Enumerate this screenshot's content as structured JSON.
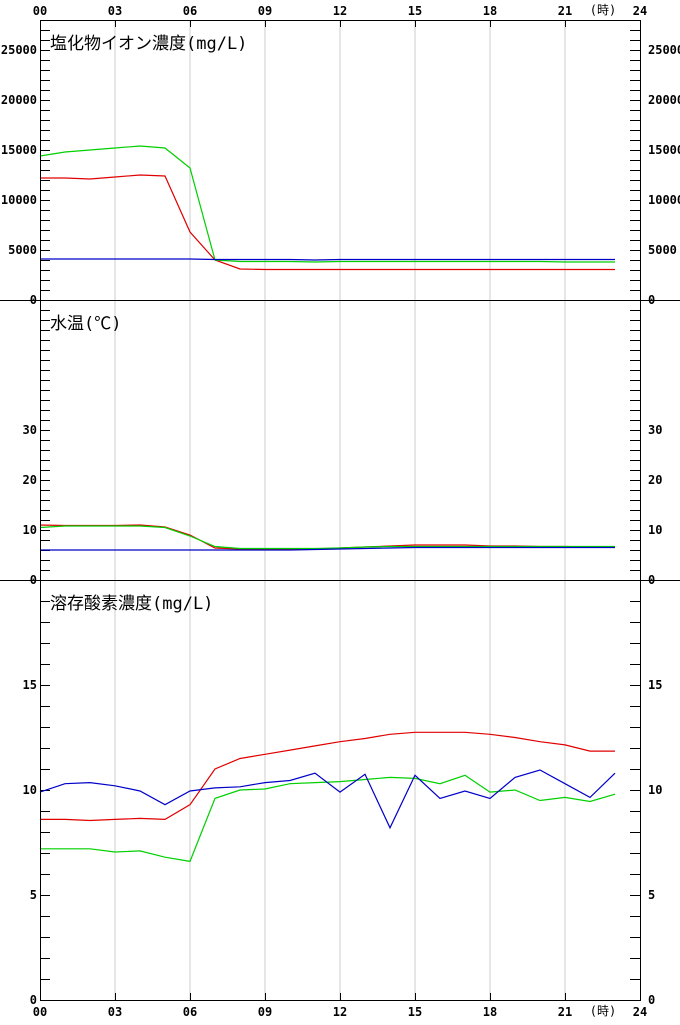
{
  "x_axis": {
    "tick_labels": [
      "00",
      "03",
      "06",
      "09",
      "12",
      "15",
      "18",
      "21",
      "24"
    ],
    "unit_label": "(時)",
    "range": [
      0,
      24
    ]
  },
  "colors": {
    "series_red": "#e00000",
    "series_green": "#00d000",
    "series_blue": "#0000c8",
    "gridline": "#cccccc",
    "frame": "#000000"
  },
  "chart_data": [
    {
      "type": "line",
      "title": "塩化物イオン濃度(mg/L)",
      "xlabel": "",
      "ylabel": "",
      "xlim": [
        0,
        24
      ],
      "ylim": [
        0,
        28000
      ],
      "yticks": [
        0,
        5000,
        10000,
        15000,
        20000,
        25000
      ],
      "ytick_labels": [
        "0",
        "5000",
        "10000",
        "15000",
        "20000",
        "25000"
      ],
      "minor_step": 1000,
      "grid": "vertical",
      "x": [
        0,
        1,
        2,
        3,
        4,
        5,
        6,
        7,
        8,
        9,
        10,
        11,
        12,
        13,
        14,
        15,
        16,
        17,
        18,
        19,
        20,
        21,
        22,
        23
      ],
      "series": [
        {
          "color": "red",
          "values": [
            12200,
            12200,
            12100,
            12300,
            12500,
            12400,
            6800,
            4000,
            3100,
            3050,
            3050,
            3050,
            3050,
            3050,
            3050,
            3050,
            3050,
            3050,
            3050,
            3050,
            3050,
            3050,
            3050,
            3050
          ]
        },
        {
          "color": "green",
          "values": [
            14400,
            14800,
            15000,
            15200,
            15400,
            15200,
            13200,
            4000,
            3850,
            3850,
            3850,
            3800,
            3850,
            3850,
            3850,
            3850,
            3850,
            3850,
            3850,
            3850,
            3850,
            3800,
            3800,
            3800
          ]
        },
        {
          "color": "blue",
          "values": [
            4100,
            4100,
            4100,
            4100,
            4100,
            4100,
            4100,
            4050,
            4050,
            4050,
            4050,
            4000,
            4050,
            4050,
            4050,
            4050,
            4050,
            4050,
            4050,
            4050,
            4050,
            4050,
            4050,
            4050
          ]
        }
      ]
    },
    {
      "type": "line",
      "title": "水温(℃)",
      "xlabel": "",
      "ylabel": "",
      "xlim": [
        0,
        24
      ],
      "ylim": [
        0,
        56
      ],
      "yticks": [
        0,
        10,
        20,
        30
      ],
      "ytick_labels": [
        "0",
        "10",
        "20",
        "30"
      ],
      "minor_step": 2,
      "grid": "vertical",
      "x": [
        0,
        1,
        2,
        3,
        4,
        5,
        6,
        7,
        8,
        9,
        10,
        11,
        12,
        13,
        14,
        15,
        16,
        17,
        18,
        19,
        20,
        21,
        22,
        23
      ],
      "series": [
        {
          "color": "red",
          "values": [
            11.0,
            10.9,
            10.9,
            10.9,
            11.0,
            10.6,
            9.0,
            6.4,
            6.2,
            6.1,
            6.1,
            6.2,
            6.4,
            6.6,
            6.8,
            7.0,
            7.0,
            7.0,
            6.8,
            6.8,
            6.7,
            6.7,
            6.6,
            6.6
          ]
        },
        {
          "color": "green",
          "values": [
            10.5,
            10.8,
            10.8,
            10.8,
            10.8,
            10.5,
            8.8,
            6.7,
            6.3,
            6.3,
            6.3,
            6.3,
            6.4,
            6.6,
            6.7,
            6.7,
            6.7,
            6.7,
            6.7,
            6.7,
            6.7,
            6.7,
            6.7,
            6.7
          ]
        },
        {
          "color": "blue",
          "values": [
            6.0,
            6.0,
            6.0,
            6.0,
            6.0,
            6.0,
            6.0,
            6.0,
            6.0,
            6.0,
            6.0,
            6.1,
            6.2,
            6.3,
            6.4,
            6.5,
            6.5,
            6.5,
            6.5,
            6.5,
            6.5,
            6.5,
            6.5,
            6.5
          ]
        }
      ]
    },
    {
      "type": "line",
      "title": "溶存酸素濃度(mg/L)",
      "xlabel": "",
      "ylabel": "",
      "xlim": [
        0,
        24
      ],
      "ylim": [
        0,
        20
      ],
      "yticks": [
        0,
        5,
        10,
        15
      ],
      "ytick_labels": [
        "0",
        "5",
        "10",
        "15"
      ],
      "minor_step": 1,
      "grid": "vertical",
      "x": [
        0,
        1,
        2,
        3,
        4,
        5,
        6,
        7,
        8,
        9,
        10,
        11,
        12,
        13,
        14,
        15,
        16,
        17,
        18,
        19,
        20,
        21,
        22,
        23
      ],
      "series": [
        {
          "color": "red",
          "values": [
            8.6,
            8.6,
            8.55,
            8.6,
            8.65,
            8.6,
            9.3,
            11.0,
            11.5,
            11.7,
            11.9,
            12.1,
            12.3,
            12.45,
            12.65,
            12.75,
            12.75,
            12.75,
            12.65,
            12.5,
            12.3,
            12.15,
            11.85,
            11.85
          ]
        },
        {
          "color": "green",
          "values": [
            7.2,
            7.2,
            7.2,
            7.05,
            7.1,
            6.8,
            6.6,
            9.6,
            10.0,
            10.05,
            10.3,
            10.35,
            10.4,
            10.5,
            10.6,
            10.55,
            10.3,
            10.7,
            9.9,
            10.0,
            9.5,
            9.65,
            9.45,
            9.8
          ]
        },
        {
          "color": "blue",
          "values": [
            9.9,
            10.3,
            10.35,
            10.2,
            9.95,
            9.3,
            9.95,
            10.1,
            10.15,
            10.35,
            10.45,
            10.8,
            9.9,
            10.75,
            8.2,
            10.7,
            9.6,
            9.95,
            9.6,
            10.6,
            10.95,
            10.3,
            9.65,
            10.8
          ]
        }
      ]
    }
  ]
}
